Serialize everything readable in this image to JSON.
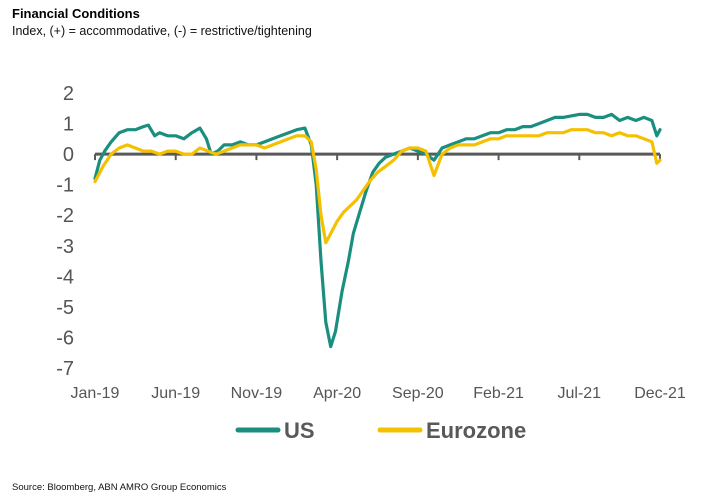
{
  "header": {
    "title": "Financial Conditions",
    "subtitle": "Index, (+) = accommodative, (-) = restrictive/tightening"
  },
  "footer": {
    "source": "Source: Bloomberg, ABN AMRO Group Economics"
  },
  "chart_data": {
    "type": "line",
    "title": "Financial Conditions",
    "subtitle": "Index, (+) = accommodative, (-) = restrictive/tightening",
    "xlabel": "",
    "ylabel": "",
    "ylim": [
      -7,
      2
    ],
    "yticks": [
      "2",
      "1",
      "0",
      "-1",
      "-2",
      "-3",
      "-4",
      "-5",
      "-6",
      "-7"
    ],
    "xlim": [
      0,
      35
    ],
    "xticks": [
      {
        "label": "Jan-19",
        "x": 0
      },
      {
        "label": "Jun-19",
        "x": 5
      },
      {
        "label": "Nov-19",
        "x": 10
      },
      {
        "label": "Apr-20",
        "x": 15
      },
      {
        "label": "Sep-20",
        "x": 20
      },
      {
        "label": "Feb-21",
        "x": 25
      },
      {
        "label": "Jul-21",
        "x": 30
      },
      {
        "label": "Dec-21",
        "x": 35
      }
    ],
    "legend_position": "bottom-center",
    "series": [
      {
        "name": "US",
        "color": "#1a8f7f",
        "points": [
          [
            0,
            -0.8
          ],
          [
            0.3,
            -0.2
          ],
          [
            0.6,
            0.1
          ],
          [
            1,
            0.4
          ],
          [
            1.5,
            0.7
          ],
          [
            2,
            0.8
          ],
          [
            2.5,
            0.8
          ],
          [
            3,
            0.9
          ],
          [
            3.3,
            0.95
          ],
          [
            3.7,
            0.6
          ],
          [
            4,
            0.7
          ],
          [
            4.5,
            0.6
          ],
          [
            5,
            0.6
          ],
          [
            5.5,
            0.5
          ],
          [
            6,
            0.7
          ],
          [
            6.5,
            0.85
          ],
          [
            6.9,
            0.5
          ],
          [
            7.2,
            0.0
          ],
          [
            7.6,
            0.1
          ],
          [
            8,
            0.3
          ],
          [
            8.5,
            0.3
          ],
          [
            9,
            0.4
          ],
          [
            9.5,
            0.3
          ],
          [
            10,
            0.3
          ],
          [
            10.5,
            0.4
          ],
          [
            11,
            0.5
          ],
          [
            11.5,
            0.6
          ],
          [
            12,
            0.7
          ],
          [
            12.5,
            0.8
          ],
          [
            13,
            0.85
          ],
          [
            13.4,
            0.3
          ],
          [
            13.7,
            -1.0
          ],
          [
            14,
            -3.5
          ],
          [
            14.3,
            -5.5
          ],
          [
            14.6,
            -6.3
          ],
          [
            14.9,
            -5.8
          ],
          [
            15.3,
            -4.5
          ],
          [
            15.7,
            -3.5
          ],
          [
            16,
            -2.6
          ],
          [
            16.4,
            -1.9
          ],
          [
            16.8,
            -1.2
          ],
          [
            17.2,
            -0.6
          ],
          [
            17.6,
            -0.3
          ],
          [
            18,
            -0.1
          ],
          [
            18.5,
            0.0
          ],
          [
            19,
            0.1
          ],
          [
            19.5,
            0.2
          ],
          [
            20,
            0.1
          ],
          [
            20.5,
            0.0
          ],
          [
            21,
            -0.2
          ],
          [
            21.5,
            0.2
          ],
          [
            22,
            0.3
          ],
          [
            22.5,
            0.4
          ],
          [
            23,
            0.5
          ],
          [
            23.5,
            0.5
          ],
          [
            24,
            0.6
          ],
          [
            24.5,
            0.7
          ],
          [
            25,
            0.7
          ],
          [
            25.5,
            0.8
          ],
          [
            26,
            0.8
          ],
          [
            26.5,
            0.9
          ],
          [
            27,
            0.9
          ],
          [
            27.5,
            1.0
          ],
          [
            28,
            1.1
          ],
          [
            28.5,
            1.2
          ],
          [
            29,
            1.2
          ],
          [
            29.5,
            1.25
          ],
          [
            30,
            1.3
          ],
          [
            30.5,
            1.3
          ],
          [
            31,
            1.2
          ],
          [
            31.5,
            1.2
          ],
          [
            32,
            1.3
          ],
          [
            32.5,
            1.1
          ],
          [
            33,
            1.2
          ],
          [
            33.5,
            1.1
          ],
          [
            34,
            1.2
          ],
          [
            34.5,
            1.1
          ],
          [
            34.8,
            0.6
          ],
          [
            35,
            0.8
          ]
        ]
      },
      {
        "name": "Eurozone",
        "color": "#f5c000",
        "points": [
          [
            0,
            -0.9
          ],
          [
            0.5,
            -0.4
          ],
          [
            1,
            0.0
          ],
          [
            1.5,
            0.2
          ],
          [
            2,
            0.3
          ],
          [
            2.5,
            0.2
          ],
          [
            3,
            0.1
          ],
          [
            3.5,
            0.1
          ],
          [
            4,
            0.0
          ],
          [
            4.5,
            0.1
          ],
          [
            5,
            0.1
          ],
          [
            5.5,
            0.0
          ],
          [
            6,
            0.0
          ],
          [
            6.5,
            0.2
          ],
          [
            7,
            0.1
          ],
          [
            7.5,
            0.0
          ],
          [
            8,
            0.1
          ],
          [
            8.5,
            0.2
          ],
          [
            9,
            0.3
          ],
          [
            9.5,
            0.3
          ],
          [
            10,
            0.3
          ],
          [
            10.5,
            0.2
          ],
          [
            11,
            0.3
          ],
          [
            11.5,
            0.4
          ],
          [
            12,
            0.5
          ],
          [
            12.5,
            0.6
          ],
          [
            13,
            0.6
          ],
          [
            13.4,
            0.4
          ],
          [
            13.7,
            -0.5
          ],
          [
            14,
            -2.0
          ],
          [
            14.3,
            -2.9
          ],
          [
            14.6,
            -2.6
          ],
          [
            15,
            -2.2
          ],
          [
            15.4,
            -1.9
          ],
          [
            15.8,
            -1.7
          ],
          [
            16.2,
            -1.5
          ],
          [
            16.6,
            -1.2
          ],
          [
            17,
            -0.9
          ],
          [
            17.5,
            -0.6
          ],
          [
            18,
            -0.4
          ],
          [
            18.5,
            -0.2
          ],
          [
            19,
            0.1
          ],
          [
            19.5,
            0.2
          ],
          [
            20,
            0.2
          ],
          [
            20.5,
            0.1
          ],
          [
            21,
            -0.7
          ],
          [
            21.5,
            0.0
          ],
          [
            22,
            0.2
          ],
          [
            22.5,
            0.3
          ],
          [
            23,
            0.3
          ],
          [
            23.5,
            0.3
          ],
          [
            24,
            0.4
          ],
          [
            24.5,
            0.5
          ],
          [
            25,
            0.5
          ],
          [
            25.5,
            0.6
          ],
          [
            26,
            0.6
          ],
          [
            26.5,
            0.6
          ],
          [
            27,
            0.6
          ],
          [
            27.5,
            0.6
          ],
          [
            28,
            0.7
          ],
          [
            28.5,
            0.7
          ],
          [
            29,
            0.7
          ],
          [
            29.5,
            0.8
          ],
          [
            30,
            0.8
          ],
          [
            30.5,
            0.8
          ],
          [
            31,
            0.7
          ],
          [
            31.5,
            0.7
          ],
          [
            32,
            0.6
          ],
          [
            32.5,
            0.7
          ],
          [
            33,
            0.6
          ],
          [
            33.5,
            0.6
          ],
          [
            34,
            0.5
          ],
          [
            34.5,
            0.4
          ],
          [
            34.8,
            -0.3
          ],
          [
            35,
            -0.2
          ]
        ]
      }
    ]
  }
}
